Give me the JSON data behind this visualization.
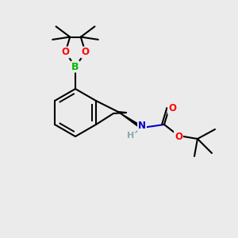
{
  "background_color": "#ebebeb",
  "bond_color": "#000000",
  "atom_colors": {
    "O": "#ff0000",
    "B": "#00bb00",
    "N": "#0000cc",
    "H": "#88aaaa",
    "C": "#000000"
  },
  "figsize": [
    3.0,
    3.0
  ],
  "dpi": 100
}
